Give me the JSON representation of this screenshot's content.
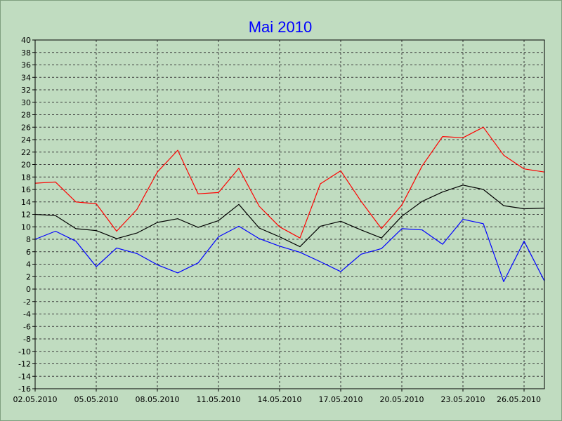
{
  "chart_data": {
    "type": "line",
    "title": "Mai 2010",
    "title_color": "#0000ff",
    "background_color": "#c0dcc0",
    "grid": true,
    "grid_style": "dashed",
    "xlabel": "",
    "ylabel": "",
    "ylim": [
      -16,
      40
    ],
    "y_ticks": [
      40,
      38,
      36,
      34,
      32,
      30,
      28,
      26,
      24,
      22,
      20,
      18,
      16,
      14,
      12,
      10,
      8,
      6,
      4,
      2,
      0,
      -2,
      -4,
      -6,
      -8,
      -10,
      -12,
      -14,
      -16
    ],
    "x": [
      "02.05.2010",
      "03.05.2010",
      "04.05.2010",
      "05.05.2010",
      "06.05.2010",
      "07.05.2010",
      "08.05.2010",
      "09.05.2010",
      "10.05.2010",
      "11.05.2010",
      "12.05.2010",
      "13.05.2010",
      "14.05.2010",
      "15.05.2010",
      "16.05.2010",
      "17.05.2010",
      "18.05.2010",
      "19.05.2010",
      "20.05.2010",
      "21.05.2010",
      "22.05.2010",
      "23.05.2010",
      "24.05.2010",
      "25.05.2010",
      "26.05.2010",
      "27.05.2010"
    ],
    "x_tick_labels": [
      "02.05.2010",
      "05.05.2010",
      "08.05.2010",
      "11.05.2010",
      "14.05.2010",
      "17.05.2010",
      "20.05.2010",
      "23.05.2010",
      "26.05.2010"
    ],
    "series": [
      {
        "color": "#ff0000",
        "values": [
          17.0,
          17.2,
          14.0,
          13.7,
          9.3,
          12.8,
          18.8,
          22.3,
          15.3,
          15.5,
          19.4,
          13.3,
          10.0,
          8.2,
          16.9,
          19.0,
          14.1,
          9.7,
          13.5,
          19.8,
          24.5,
          24.3,
          26.0,
          21.5,
          19.3,
          18.8
        ]
      },
      {
        "color": "#000000",
        "values": [
          12.0,
          11.8,
          9.7,
          9.4,
          8.1,
          9.0,
          10.7,
          11.3,
          9.9,
          11.0,
          13.6,
          9.8,
          8.4,
          6.8,
          10.1,
          10.9,
          9.5,
          8.2,
          11.7,
          14.1,
          15.6,
          16.7,
          16.0,
          13.4,
          12.9,
          13.0
        ]
      },
      {
        "color": "#0000ff",
        "values": [
          8.0,
          9.3,
          7.7,
          3.6,
          6.6,
          5.7,
          3.9,
          2.6,
          4.2,
          8.4,
          10.1,
          8.1,
          6.9,
          5.9,
          4.4,
          2.8,
          5.6,
          6.5,
          9.7,
          9.5,
          7.2,
          11.2,
          10.5,
          1.2,
          7.7,
          1.3
        ]
      }
    ]
  }
}
